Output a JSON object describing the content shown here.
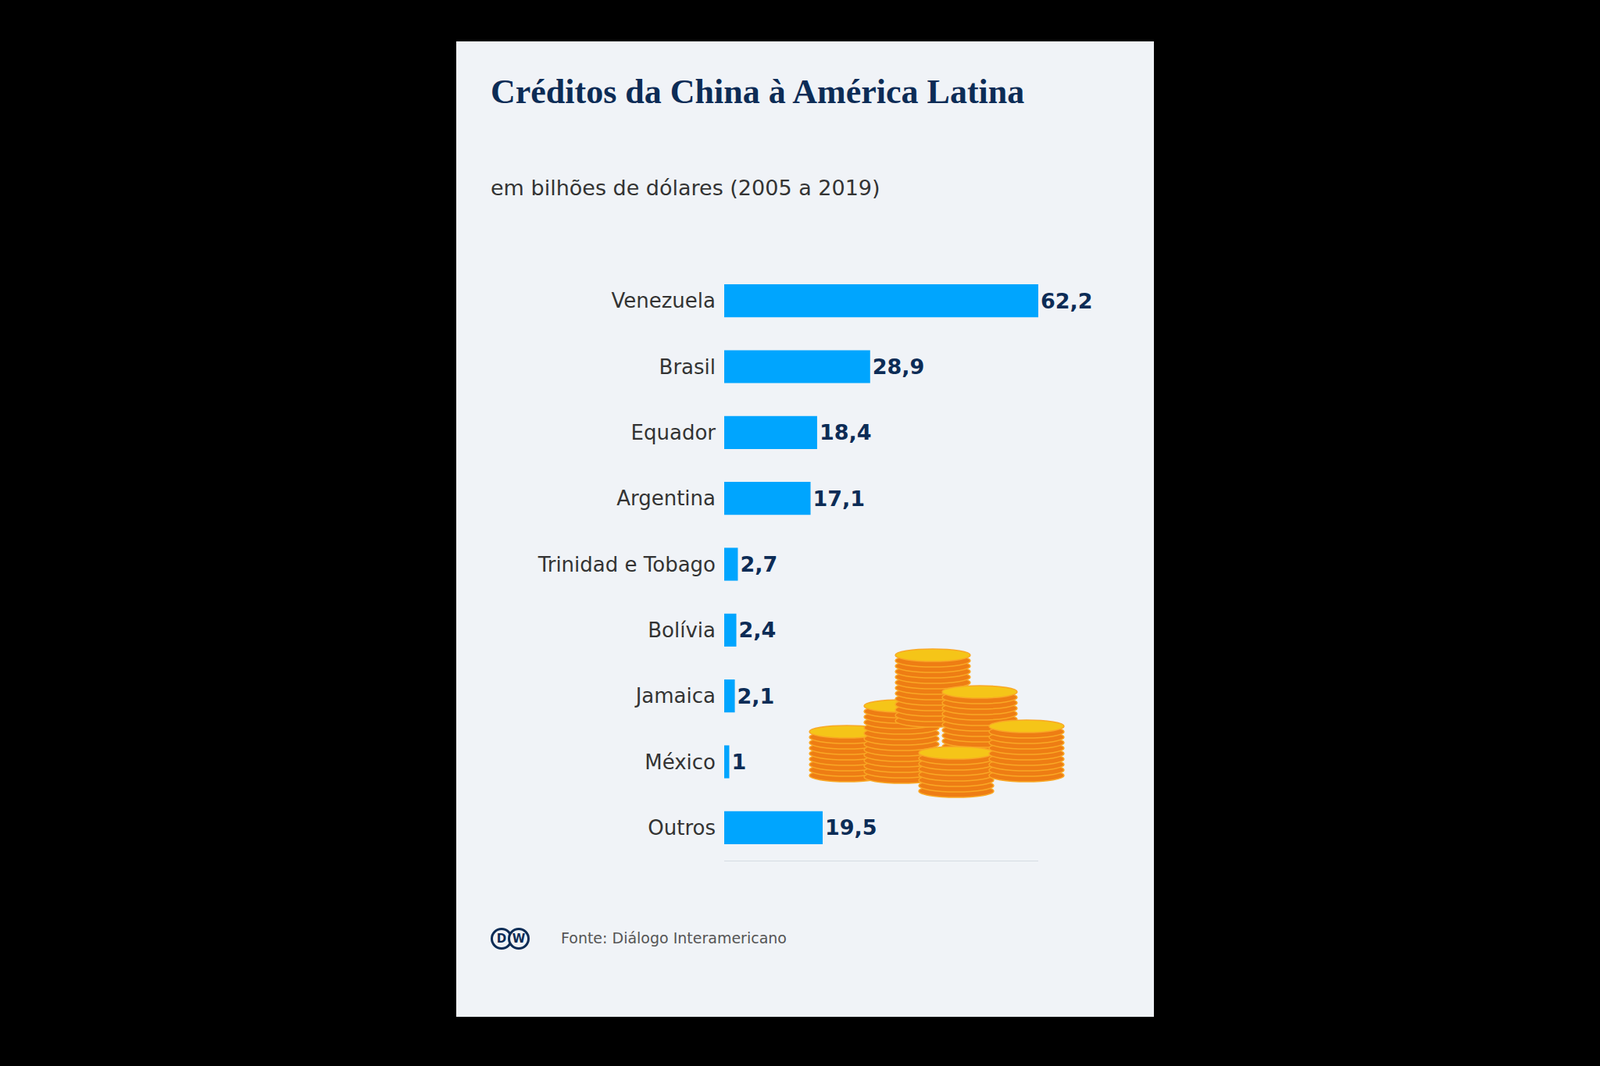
{
  "chart_data": {
    "type": "bar",
    "orientation": "horizontal",
    "title": "Créditos da China à América Latina",
    "subtitle": "em bilhões de dólares (2005 a 2019)",
    "source": "Fonte: Diálogo Interamericano",
    "logo": "DW",
    "categories": [
      "Venezuela",
      "Brasil",
      "Equador",
      "Argentina",
      "Trinidad e Tobago",
      "Bolívia",
      "Jamaica",
      "México",
      "Outros"
    ],
    "values": [
      62.2,
      28.9,
      18.4,
      17.1,
      2.7,
      2.4,
      2.1,
      1,
      19.5
    ],
    "value_labels": [
      "62,2",
      "28,9",
      "18,4",
      "17,1",
      "2,7",
      "2,4",
      "2,1",
      "1",
      "19,5"
    ],
    "color": "#00a5fe",
    "xlim": [
      0,
      62.2
    ],
    "xticks": [],
    "tick_labels": "y",
    "data_labels": true,
    "grid": false
  }
}
